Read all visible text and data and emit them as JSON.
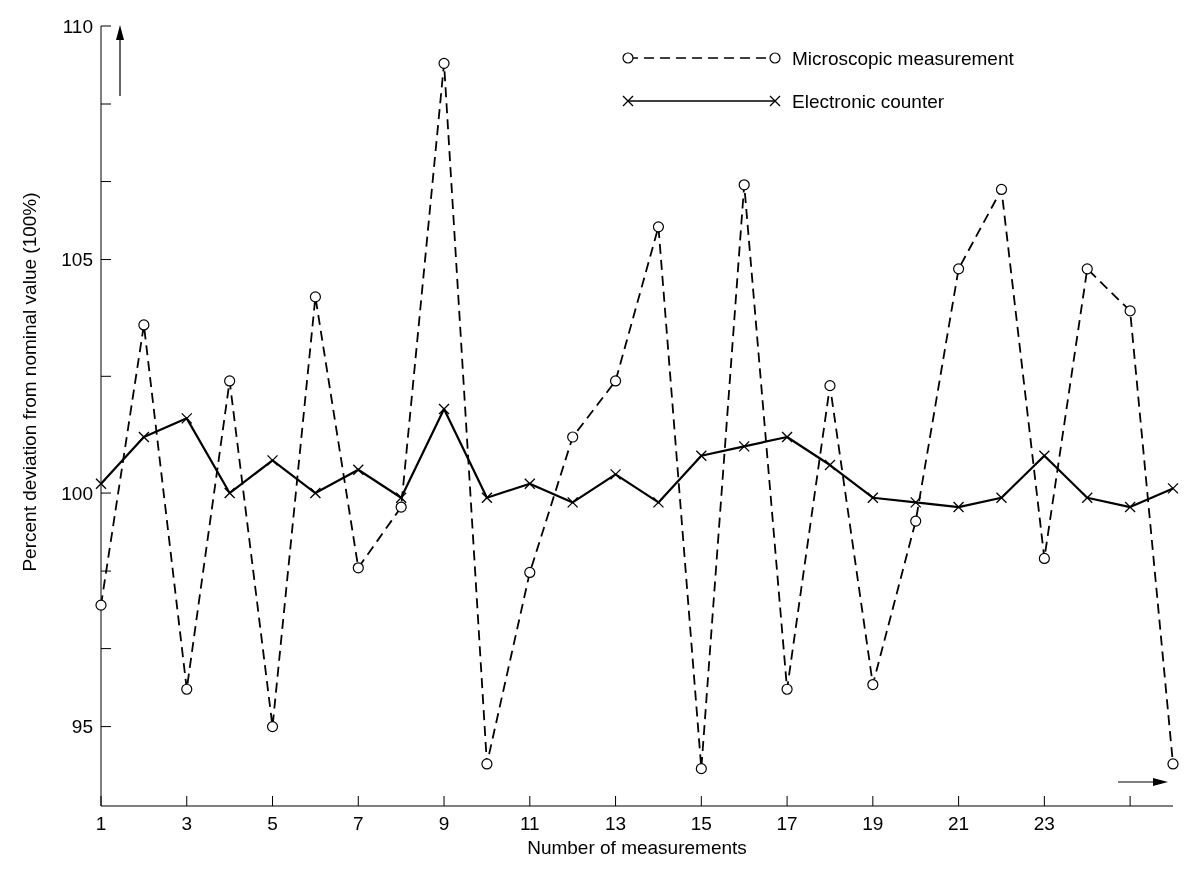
{
  "chart_data": {
    "type": "line",
    "xlabel": "Number of measurements",
    "ylabel": "Percent deviation from nominal value (100%)",
    "x": [
      1,
      2,
      3,
      4,
      5,
      6,
      7,
      8,
      9,
      10,
      11,
      12,
      13,
      14,
      15,
      16,
      17,
      18,
      19,
      20,
      21,
      22,
      23,
      24,
      25,
      26
    ],
    "xlim": [
      1,
      26
    ],
    "xticks": [
      1,
      3,
      5,
      7,
      9,
      11,
      13,
      15,
      17,
      19,
      21,
      23,
      {
        "value": 25,
        "label": null
      }
    ],
    "ylim": [
      93.3,
      110
    ],
    "yticks": [
      95,
      {
        "value": 96.67,
        "label": null
      },
      {
        "value": 98.33,
        "label": null
      },
      100,
      {
        "value": 102.5,
        "label": null
      },
      105,
      {
        "value": 106.67,
        "label": null
      },
      {
        "value": 108.33,
        "label": null
      },
      110
    ],
    "legend": "top right",
    "grid": false,
    "series": [
      {
        "name": "Microscopic measurement",
        "color": "#000000",
        "marker": "circle",
        "line_style": "dashed",
        "values": [
          97.6,
          103.6,
          95.8,
          102.4,
          95.0,
          104.2,
          98.4,
          99.7,
          109.2,
          94.2,
          98.3,
          101.2,
          102.4,
          105.7,
          94.1,
          106.6,
          95.8,
          102.3,
          95.9,
          99.4,
          104.8,
          106.5,
          98.6,
          104.8,
          103.9,
          94.2
        ]
      },
      {
        "name": "Electronic counter",
        "color": "#000000",
        "marker": "cross",
        "line_style": "solid",
        "values": [
          100.2,
          101.2,
          101.6,
          100.0,
          100.7,
          100.0,
          100.5,
          99.9,
          101.8,
          99.9,
          100.2,
          99.8,
          100.4,
          99.8,
          100.8,
          101.0,
          101.2,
          100.6,
          99.9,
          99.8,
          99.7,
          99.9,
          100.8,
          99.9,
          99.7,
          100.1
        ]
      }
    ]
  }
}
